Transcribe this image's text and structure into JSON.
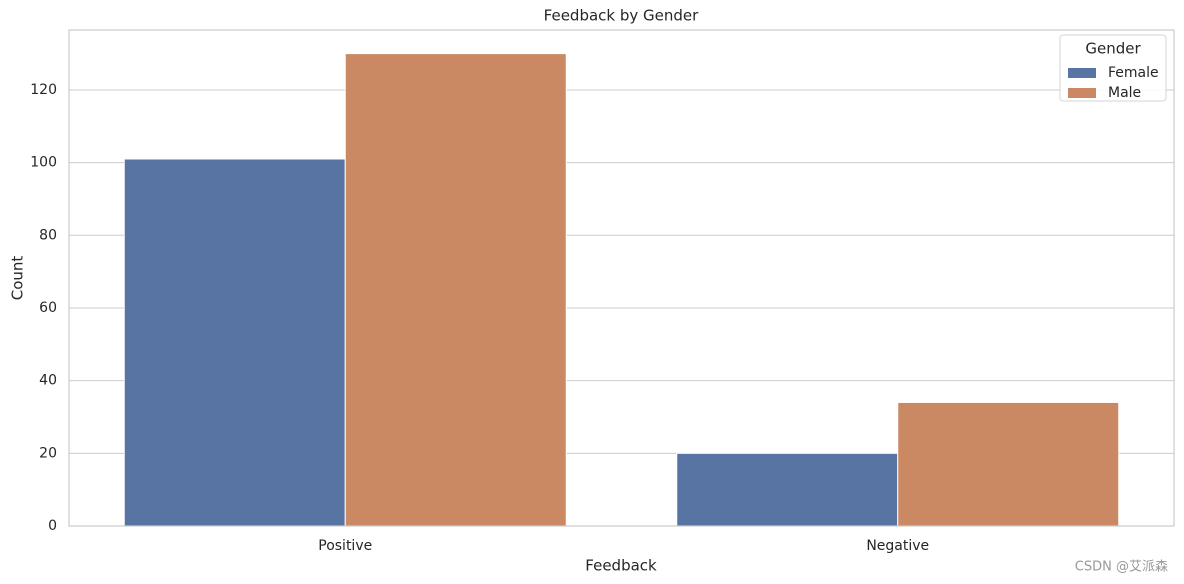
{
  "chart_data": {
    "type": "bar",
    "title": "Feedback by Gender",
    "xlabel": "Feedback",
    "ylabel": "Count",
    "categories": [
      "Positive",
      "Negative"
    ],
    "series": [
      {
        "name": "Female",
        "color": "#5874a3",
        "values": [
          101,
          20
        ]
      },
      {
        "name": "Male",
        "color": "#cb8963",
        "values": [
          130,
          34
        ]
      }
    ],
    "ylim": [
      0,
      136.5
    ],
    "yticks": [
      0,
      20,
      40,
      60,
      80,
      100,
      120
    ],
    "grid": true,
    "legend_title": "Gender",
    "legend_position": "upper-right",
    "watermark": "CSDN @艾派森"
  }
}
